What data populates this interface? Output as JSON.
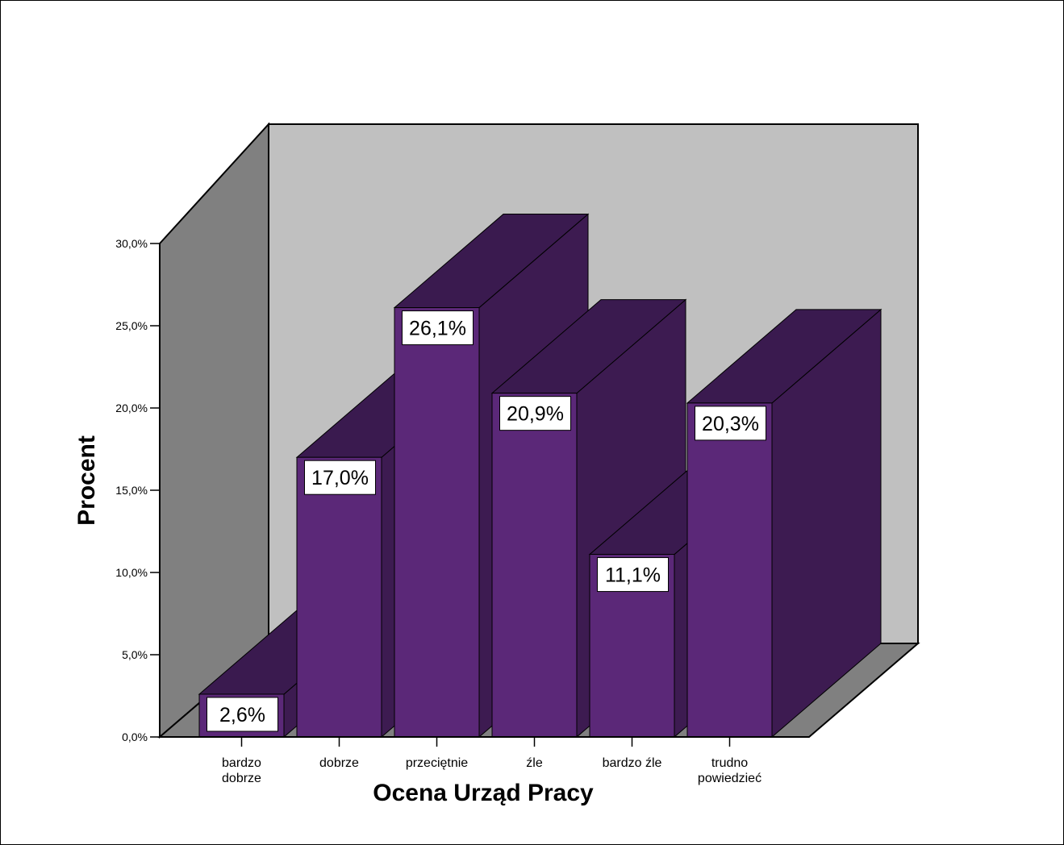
{
  "chart_data": {
    "type": "bar",
    "style": "3d",
    "categories": [
      [
        "bardzo",
        "dobrze"
      ],
      [
        "dobrze"
      ],
      [
        "przeciętnie"
      ],
      [
        "źle"
      ],
      [
        "bardzo źle"
      ],
      [
        "trudno",
        "powiedzieć"
      ]
    ],
    "values": [
      2.6,
      17.0,
      26.1,
      20.9,
      11.1,
      20.3
    ],
    "value_labels": [
      "2,6%",
      "17,0%",
      "26,1%",
      "20,9%",
      "11,1%",
      "20,3%"
    ],
    "y_ticks": [
      "0,0%",
      "5,0%",
      "10,0%",
      "15,0%",
      "20,0%",
      "25,0%",
      "30,0%"
    ],
    "ylim": [
      0,
      30
    ],
    "xlabel": "Ocena Urząd Pracy",
    "ylabel": "Procent",
    "grid": false,
    "colors": {
      "bar_front": "#5b2878",
      "bar_side": "#3d1b51",
      "bar_top": "#3a1a4f",
      "back_wall": "#c0c0c0",
      "side_wall": "#808080",
      "floor": "#808080"
    }
  }
}
